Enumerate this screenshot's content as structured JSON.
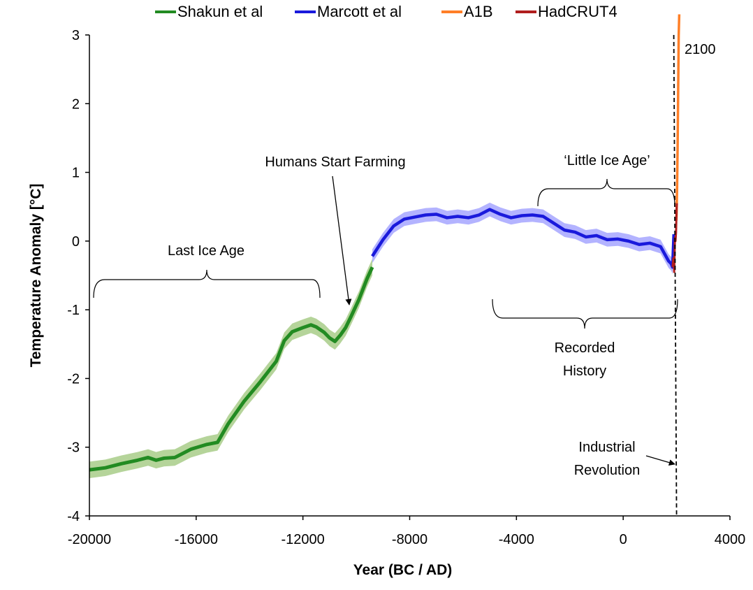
{
  "chart_data": {
    "type": "line",
    "title": "",
    "xlabel": "Year (BC / AD)",
    "ylabel": "Temperature Anomaly [°C]",
    "xlim": [
      -20000,
      4000
    ],
    "ylim": [
      -4,
      3
    ],
    "x_ticks": [
      -20000,
      -16000,
      -12000,
      -8000,
      -4000,
      0,
      4000
    ],
    "y_ticks": [
      -4,
      -3,
      -2,
      -1,
      0,
      1,
      2,
      3
    ],
    "x_tick_labels": [
      "-20000",
      "-16000",
      "-12000",
      "-8000",
      "-4000",
      "0",
      "4000"
    ],
    "y_tick_labels": [
      "-4",
      "-3",
      "-2",
      "-1",
      "0",
      "1",
      "2",
      "3"
    ],
    "grid": false,
    "legend_position": "top",
    "series": [
      {
        "name": "Shakun et al",
        "color": "#228b22",
        "band_color": "#b5d49a",
        "uncertainty": 0.12,
        "x": [
          -20000,
          -19400,
          -18800,
          -18200,
          -17800,
          -17500,
          -17200,
          -16800,
          -16200,
          -15600,
          -15200,
          -14800,
          -14200,
          -13600,
          -13000,
          -12700,
          -12400,
          -12000,
          -11700,
          -11500,
          -11200,
          -11000,
          -10800,
          -10600,
          -10400,
          -10200,
          -9900,
          -9600,
          -9400
        ],
        "values": [
          -3.33,
          -3.3,
          -3.24,
          -3.19,
          -3.15,
          -3.19,
          -3.16,
          -3.15,
          -3.03,
          -2.96,
          -2.93,
          -2.66,
          -2.33,
          -2.05,
          -1.75,
          -1.45,
          -1.32,
          -1.26,
          -1.22,
          -1.25,
          -1.33,
          -1.41,
          -1.46,
          -1.37,
          -1.26,
          -1.1,
          -0.85,
          -0.55,
          -0.38
        ]
      },
      {
        "name": "Marcott et al",
        "color": "#1a1adc",
        "band_color": "#b3b3ff",
        "uncertainty": 0.1,
        "x": [
          -9400,
          -9000,
          -8600,
          -8200,
          -7800,
          -7400,
          -7000,
          -6600,
          -6200,
          -5800,
          -5400,
          -5000,
          -4600,
          -4200,
          -3800,
          -3400,
          -3000,
          -2600,
          -2200,
          -1800,
          -1400,
          -1000,
          -600,
          -200,
          200,
          600,
          1000,
          1400,
          1700,
          1800,
          1850,
          1900
        ],
        "values": [
          -0.22,
          0.02,
          0.22,
          0.32,
          0.35,
          0.38,
          0.39,
          0.34,
          0.36,
          0.34,
          0.38,
          0.46,
          0.39,
          0.34,
          0.37,
          0.38,
          0.36,
          0.26,
          0.16,
          0.13,
          0.06,
          0.08,
          0.02,
          0.03,
          0.0,
          -0.05,
          -0.03,
          -0.08,
          -0.29,
          -0.33,
          -0.38,
          0.1
        ]
      },
      {
        "name": "A1B",
        "color": "#ff7f27",
        "x": [
          1990,
          2000,
          2020,
          2040,
          2060,
          2080,
          2100
        ],
        "values": [
          0.3,
          0.38,
          0.8,
          1.4,
          2.2,
          3.0,
          3.3
        ]
      },
      {
        "name": "HadCRUT4",
        "color": "#b01e1e",
        "x": [
          1850,
          1880,
          1900,
          1910,
          1940,
          1960,
          1980,
          2000,
          2012
        ],
        "values": [
          -0.38,
          -0.25,
          -0.32,
          -0.45,
          0.05,
          0.0,
          0.12,
          0.45,
          0.55
        ]
      }
    ],
    "annotations": [
      {
        "text": "Last Ice Age"
      },
      {
        "text": "Humans Start Farming"
      },
      {
        "text": "‘Little Ice Age’"
      },
      {
        "text": "Recorded"
      },
      {
        "text": "History"
      },
      {
        "text": "Industrial"
      },
      {
        "text": "Revolution"
      },
      {
        "text": "2100"
      }
    ],
    "industrial_revolution_year": 2000
  }
}
